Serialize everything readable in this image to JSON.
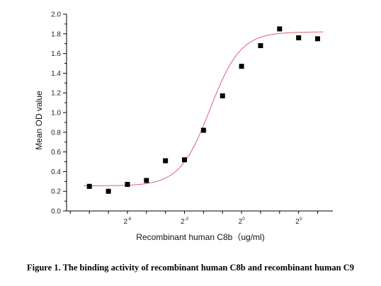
{
  "chart_data": {
    "type": "scatter",
    "title": "",
    "xlabel": "Recombinant human  C8b（ug/ml)",
    "ylabel": "Mean OD value",
    "ylim": [
      0,
      2.0
    ],
    "yticks": [
      "0.0",
      "0.2",
      "0.4",
      "0.6",
      "0.8",
      "1.0",
      "1.2",
      "1.4",
      "1.6",
      "1.8",
      "2.0"
    ],
    "xticks": [
      {
        "base": "2",
        "exp": "-6",
        "log2": -6
      },
      {
        "base": "2",
        "exp": "-3",
        "log2": -3
      },
      {
        "base": "2",
        "exp": "0",
        "log2": 0
      },
      {
        "base": "2",
        "exp": "3",
        "log2": 3
      }
    ],
    "xlim_log2": [
      -9.2,
      4.8
    ],
    "scale": "log2",
    "grid": false,
    "series": [
      {
        "points_log2x": [
          -8,
          -7,
          -6,
          -5,
          -4,
          -3,
          -2,
          -1,
          0,
          1,
          2,
          3,
          4
        ],
        "values": [
          0.25,
          0.2,
          0.27,
          0.31,
          0.51,
          0.52,
          0.82,
          1.17,
          1.47,
          1.68,
          1.85,
          1.76,
          1.75
        ],
        "marker": "square",
        "color": "#000000"
      }
    ],
    "fit": {
      "color": "#e06070",
      "model": "four-parameter logistic",
      "bottom": 0.255,
      "top": 1.82,
      "center_log2": -1.65,
      "slope": 1.25
    }
  },
  "caption": "Figure 1. The binding activity of recombinant human C8b and recombinant human C9"
}
